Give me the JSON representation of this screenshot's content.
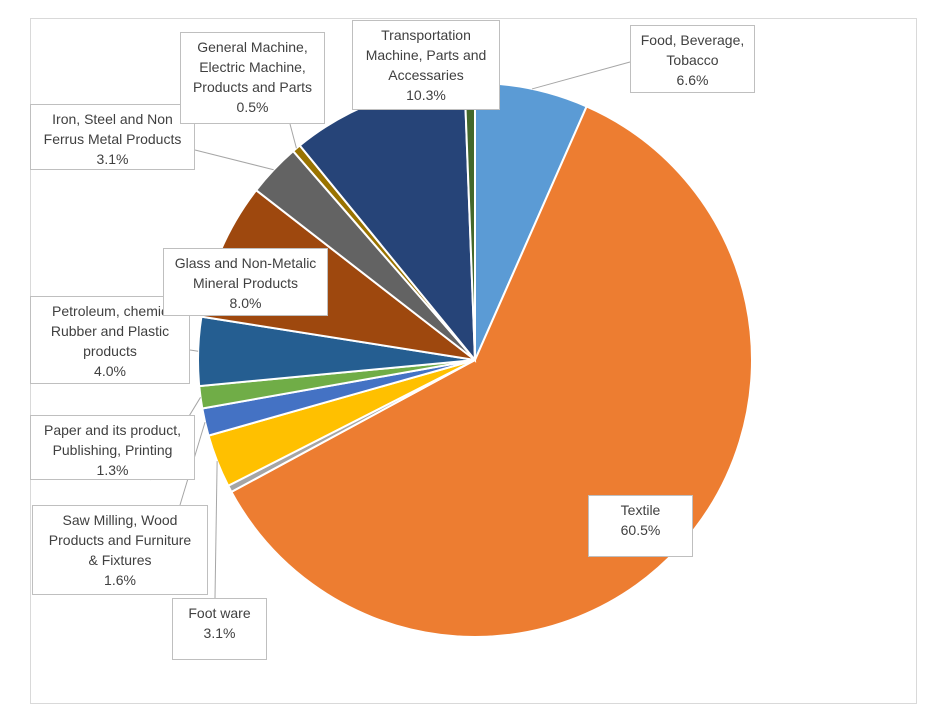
{
  "chart_data": {
    "type": "pie",
    "categories": [
      "Food, Beverage,\nTobacco",
      "Textile",
      null,
      "Foot ware",
      "Saw Milling, Wood\nProducts and Furniture\n& Fixtures",
      "Paper and its product,\nPublishing, Printing",
      "Petroleum, chemic\nRubber and Plastic\nproducts",
      "Glass and Non-Metalic\nMineral Products",
      "Iron, Steel and Non\nFerrus Metal Products",
      "General Machine,\nElectric Machine,\nProducts and Parts",
      "Transportation\nMachine, Parts and\nAccessaries",
      null
    ],
    "values": [
      6.6,
      60.5,
      0.4,
      3.1,
      1.6,
      1.3,
      4.0,
      8.0,
      3.1,
      0.5,
      10.3,
      0.6
    ],
    "value_labels": [
      "6.6%",
      "60.5%",
      null,
      "3.1%",
      "1.6%",
      "1.3%",
      "4.0%",
      "8.0%",
      "3.1%",
      "0.5%",
      "10.3%",
      null
    ],
    "colors": [
      "#5b9bd5",
      "#ed7d31",
      "#a5a5a5",
      "#ffc000",
      "#4472c4",
      "#70ad47",
      "#255e91",
      "#9e480e",
      "#636363",
      "#997300",
      "#264478",
      "#43682b"
    ]
  }
}
